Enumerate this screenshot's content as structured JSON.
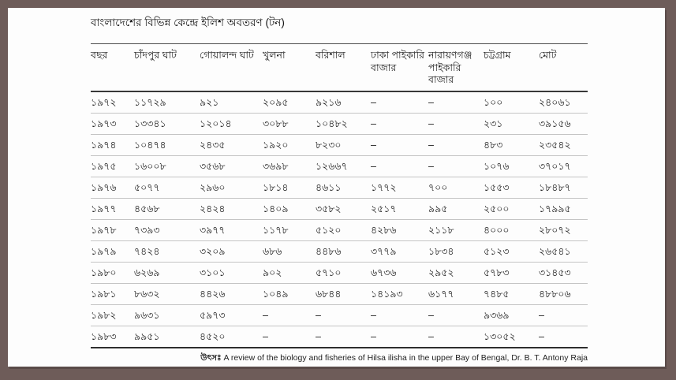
{
  "colors": {
    "frame_background": "#6e5c59",
    "panel_background": "#fdfdfd",
    "text": "#1a1a1a",
    "row_divider": "#c4c4c4",
    "header_divider": "#383838"
  },
  "title": "বাংলাদেশের বিভিন্ন কেন্দ্রে ইলিশ অবতরণ (টন)",
  "table": {
    "columns": [
      "বছর",
      "চাঁদপুর ঘাট",
      "গোয়ালন্দ ঘাট",
      "খুলনা",
      "বরিশাল",
      "ঢাকা পাইকারি বাজার",
      "নারায়ণগঞ্জ পাইকারি বাজার",
      "চট্টগ্রাম",
      "মোট"
    ],
    "rows": [
      [
        "১৯৭২",
        "১১৭২৯",
        "৯২১",
        "২০৯৫",
        "৯২১৬",
        "–",
        "–",
        "১০০",
        "২৪০৬১"
      ],
      [
        "১৯৭৩",
        "১৩৩৪১",
        "১২০১৪",
        "৩০৮৮",
        "১০৪৮২",
        "–",
        "–",
        "২৩১",
        "৩৯১৫৬"
      ],
      [
        "১৯৭৪",
        "১০৪৭৪",
        "২৪৩৫",
        "১৯২০",
        "৮২৩০",
        "–",
        "–",
        "৪৮৩",
        "২৩৫৪২"
      ],
      [
        "১৯৭৫",
        "১৬০০৮",
        "৩৫৬৮",
        "৩৬৯৮",
        "১২৬৬৭",
        "–",
        "–",
        "১০৭৬",
        "৩৭০১৭"
      ],
      [
        "১৯৭৬",
        "৫০৭৭",
        "২৯৬০",
        "১৮১৪",
        "৪৬১১",
        "১৭৭২",
        "৭০০",
        "১৫৫৩",
        "১৮৪৮৭"
      ],
      [
        "১৯৭৭",
        "৪৫৬৮",
        "২৪২৪",
        "১৪০৯",
        "৩৫৮২",
        "২৫১৭",
        "৯৯৫",
        "২৫০০",
        "১৭৯৯৫"
      ],
      [
        "১৯৭৮",
        "৭৩৯৩",
        "৩৯৭৭",
        "১১৭৮",
        "৫১২০",
        "৪২৮৬",
        "২১১৮",
        "৪০০০",
        "২৮০৭২"
      ],
      [
        "১৯৭৯",
        "৭৪২৪",
        "৩২০৯",
        "৬৮৬",
        "৪৪৮৬",
        "৩৭৭৯",
        "১৮৩৪",
        "৫১২৩",
        "২৬৫৪১"
      ],
      [
        "১৯৮০",
        "৬২৬৯",
        "৩১০১",
        "৯০২",
        "৫৭১০",
        "৬৭৩৬",
        "২৯৫২",
        "৫৭৮৩",
        "৩১৪৫৩"
      ],
      [
        "১৯৮১",
        "৮৬৩২",
        "৪৪২৬",
        "১০৪৯",
        "৬৮৪৪",
        "১৪১৯৩",
        "৬১৭৭",
        "৭৪৮৫",
        "৪৮৮০৬"
      ],
      [
        "১৯৮২",
        "৯৬৩১",
        "৫৯৭৩",
        "–",
        "–",
        "–",
        "–",
        "৯৩৬৯",
        "–"
      ],
      [
        "১৯৮৩",
        "৯৯৫১",
        "৪৫২০",
        "–",
        "–",
        "–",
        "–",
        "১৩০৫২",
        "–"
      ]
    ]
  },
  "source": {
    "prefix": "উৎসঃ",
    "text": " A review of the biology and fisheries of Hilsa ilisha in the upper Bay of Bengal, Dr. B. T. Antony Raja"
  }
}
